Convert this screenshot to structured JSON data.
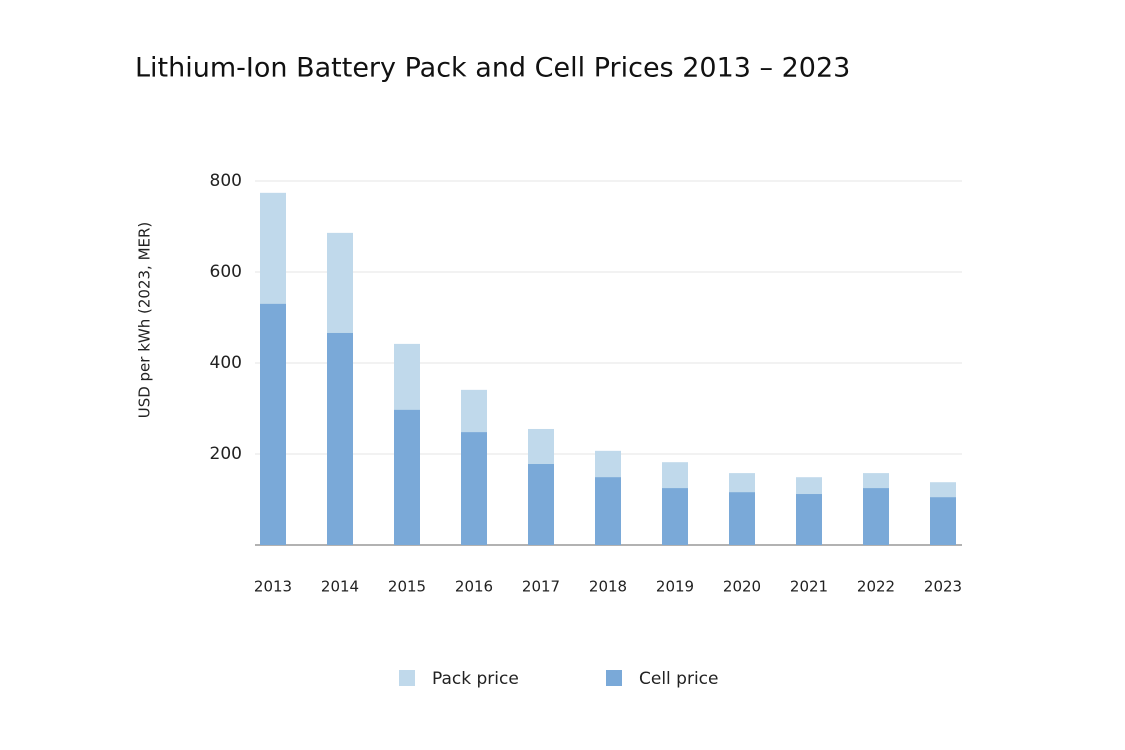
{
  "chart_data": {
    "type": "bar",
    "title": "Lithium-Ion Battery Pack and Cell Prices 2013 – 2023",
    "y_label": "USD per kWh (2023, MER)",
    "categories": [
      "2013",
      "2014",
      "2015",
      "2016",
      "2017",
      "2018",
      "2019",
      "2020",
      "2021",
      "2022",
      "2023"
    ],
    "series": [
      {
        "name": "Pack price",
        "color": "#c0d9eb",
        "values": [
          774,
          686,
          442,
          341,
          255,
          207,
          182,
          158,
          149,
          158,
          138
        ]
      },
      {
        "name": "Cell price",
        "color": "#7aa9d8",
        "values": [
          530,
          466,
          297,
          248,
          178,
          149,
          125,
          116,
          112,
          125,
          105
        ]
      }
    ],
    "ylim": [
      0,
      800
    ],
    "yticks": [
      200,
      400,
      600,
      800
    ],
    "grid": true,
    "legend": "bottom"
  }
}
